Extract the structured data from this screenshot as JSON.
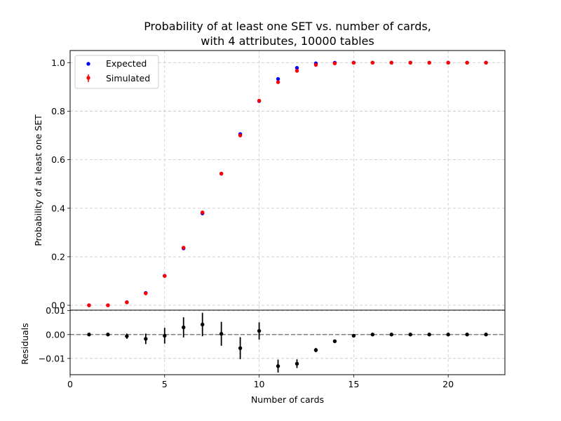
{
  "chart_data": {
    "type": "scatter",
    "title_line1": "Probability of at least one SET vs. number of cards,",
    "title_line2": "with 4 attributes, 10000 tables",
    "xlabel": "Number of cards",
    "xlim": [
      0,
      23
    ],
    "x_ticks": [
      0,
      5,
      10,
      15,
      20
    ],
    "x_tick_labels": [
      "0",
      "5",
      "10",
      "15",
      "20"
    ],
    "grid": true,
    "legend_position": "top-left",
    "main_panel": {
      "ylabel": "Probability of at least one SET",
      "ylim": [
        -0.02,
        1.05
      ],
      "y_ticks": [
        0.0,
        0.2,
        0.4,
        0.6,
        0.8,
        1.0
      ],
      "y_tick_labels": [
        "0.0",
        "0.2",
        "0.4",
        "0.6",
        "0.8",
        "1.0"
      ],
      "series": [
        {
          "name": "Expected",
          "color": "#0000ff",
          "marker": "dot",
          "x": [
            1,
            2,
            3,
            4,
            5,
            6,
            7,
            8,
            9,
            10,
            11,
            12,
            13,
            14,
            15,
            16,
            17,
            18,
            19,
            20,
            21,
            22
          ],
          "y": [
            0.0,
            0.0,
            0.0127,
            0.0508,
            0.1215,
            0.2346,
            0.3787,
            0.5423,
            0.7056,
            0.8417,
            0.9327,
            0.9785,
            0.9972,
            0.9996,
            1.0,
            1.0,
            1.0,
            1.0,
            1.0,
            1.0,
            1.0,
            1.0
          ]
        },
        {
          "name": "Simulated",
          "color": "#ff0000",
          "marker": "dot-with-errorbar",
          "x": [
            1,
            2,
            3,
            4,
            5,
            6,
            7,
            8,
            9,
            10,
            11,
            12,
            13,
            14,
            15,
            16,
            17,
            18,
            19,
            20,
            21,
            22
          ],
          "y": [
            0.0,
            0.0,
            0.012,
            0.049,
            0.121,
            0.2376,
            0.3829,
            0.5426,
            0.6999,
            0.8432,
            0.9195,
            0.9663,
            0.9907,
            0.9968,
            0.9995,
            1.0,
            1.0,
            1.0,
            1.0,
            1.0,
            1.0,
            1.0
          ]
        }
      ]
    },
    "residuals_panel": {
      "ylabel": "Residuals",
      "ylim": [
        -0.0168,
        0.0102
      ],
      "y_ticks": [
        -0.01,
        0.0,
        0.01
      ],
      "y_tick_labels": [
        "−0.01",
        "0.00",
        "0.01"
      ],
      "reference_line": 0.0,
      "color": "#000000",
      "x": [
        1,
        2,
        3,
        4,
        5,
        6,
        7,
        8,
        9,
        10,
        11,
        12,
        13,
        14,
        15,
        16,
        17,
        18,
        19,
        20,
        21,
        22
      ],
      "y": [
        0.0,
        0.0,
        -0.0007,
        -0.0018,
        -0.0005,
        0.003,
        0.0042,
        0.0003,
        -0.0057,
        0.0015,
        -0.0132,
        -0.0122,
        -0.0065,
        -0.0028,
        -0.0005,
        0.0,
        0.0,
        0.0,
        0.0,
        0.0,
        0.0,
        0.0
      ],
      "err": [
        0.0,
        0.0,
        0.0011,
        0.0022,
        0.0033,
        0.0042,
        0.0049,
        0.005,
        0.0046,
        0.0036,
        0.0027,
        0.0018,
        0.0009,
        0.0006,
        0.0002,
        0.0,
        0.0,
        0.0,
        0.0,
        0.0,
        0.0,
        0.0
      ]
    }
  }
}
